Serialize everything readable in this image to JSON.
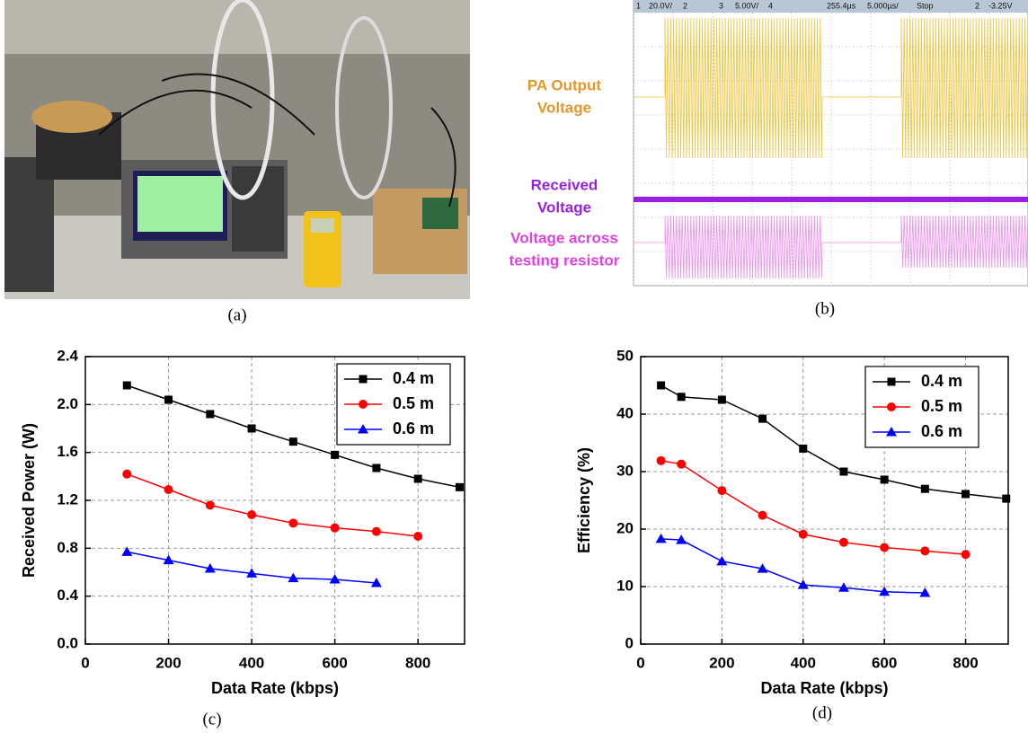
{
  "panels": {
    "a": {
      "caption": "(a)"
    },
    "b": {
      "caption": "(b)",
      "header": [
        "1",
        "20.0V/",
        "2",
        "3",
        "5.00V/",
        "4",
        "255.4µs",
        "5.000µs/",
        "Stop",
        "2",
        "-3.25V"
      ],
      "labels": [
        {
          "lines": [
            "PA Output",
            "Voltage"
          ],
          "color": "#e3962a"
        },
        {
          "lines": [
            "Received",
            "Voltage"
          ],
          "color": "#9b1fe0"
        },
        {
          "lines": [
            "Voltage across",
            "testing resistor"
          ],
          "color": "#e040e0"
        }
      ]
    }
  },
  "chart_data": [
    {
      "type": "line",
      "caption": "(c)",
      "x_label": "Data Rate (kbps)",
      "y_label": "Received Power (W)",
      "x": [
        100,
        200,
        300,
        400,
        500,
        600,
        700,
        800,
        900
      ],
      "series": [
        {
          "name": "0.4 m",
          "color": "#000000",
          "marker": "square",
          "values": [
            2.16,
            2.04,
            1.92,
            1.8,
            1.69,
            1.58,
            1.47,
            1.38,
            1.31
          ]
        },
        {
          "name": "0.5 m",
          "color": "#ff0000",
          "marker": "circle",
          "values": [
            1.42,
            1.29,
            1.16,
            1.08,
            1.01,
            0.97,
            0.94,
            0.9,
            null
          ]
        },
        {
          "name": "0.6 m",
          "color": "#0000ff",
          "marker": "triangle",
          "values": [
            0.77,
            0.7,
            0.63,
            0.59,
            0.55,
            0.54,
            0.51,
            null,
            null
          ]
        }
      ],
      "xlim": [
        0,
        912
      ],
      "xticks": [
        0,
        200,
        400,
        600,
        800
      ],
      "ylim": [
        0,
        2.4
      ],
      "yticks": [
        {
          "value": 0,
          "label": "0.0"
        },
        0.4,
        0.8,
        1.2,
        1.6,
        {
          "value": 2,
          "label": "2.0"
        },
        2.4
      ],
      "grid": true,
      "legend": "top-right"
    },
    {
      "type": "line",
      "caption": "(d)",
      "x_label": "Data Rate (kbps)",
      "y_label": "Efficiency (%)",
      "x": [
        50,
        100,
        200,
        300,
        400,
        500,
        600,
        700,
        800,
        900
      ],
      "series": [
        {
          "name": "0.4 m",
          "color": "#000000",
          "marker": "square",
          "values": [
            45,
            43,
            42.5,
            39.2,
            34,
            30,
            28.6,
            27,
            26.1,
            25.3
          ]
        },
        {
          "name": "0.5 m",
          "color": "#ff0000",
          "marker": "circle",
          "values": [
            31.9,
            31.3,
            26.7,
            22.4,
            19.1,
            17.7,
            16.8,
            16.2,
            15.6,
            null
          ]
        },
        {
          "name": "0.6 m",
          "color": "#0000ff",
          "marker": "triangle",
          "values": [
            18.3,
            18.1,
            14.4,
            13.1,
            10.3,
            9.8,
            9.1,
            8.9,
            null,
            null
          ]
        }
      ],
      "xlim": [
        0,
        905
      ],
      "xticks": [
        0,
        200,
        400,
        600,
        800
      ],
      "ylim": [
        0,
        50
      ],
      "yticks": [
        0,
        10,
        20,
        30,
        40,
        50
      ],
      "grid": true,
      "legend": "top-right"
    }
  ]
}
